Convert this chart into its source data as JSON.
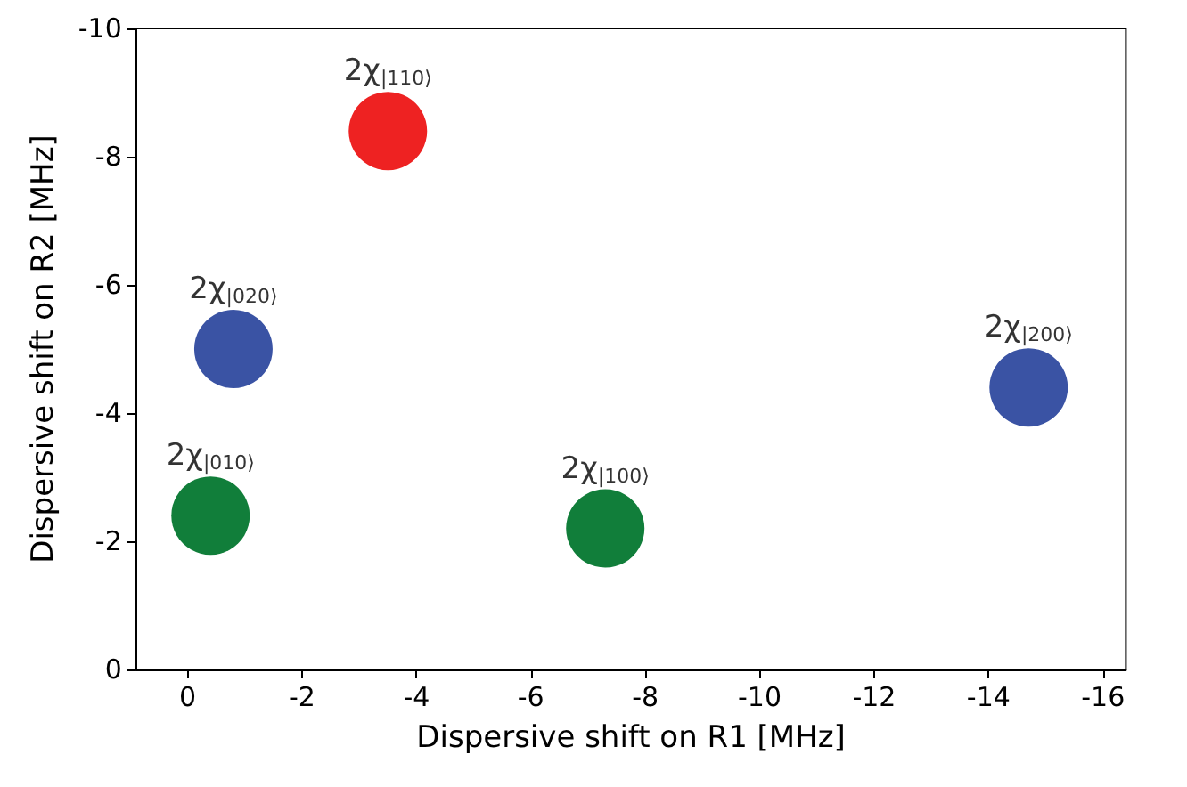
{
  "chart_data": {
    "type": "scatter",
    "xlabel": "Dispersive shift on R1 [MHz]",
    "ylabel": "Dispersive shift on R2 [MHz]",
    "x": [
      -3.5,
      -0.8,
      -14.7,
      -0.4,
      -7.3
    ],
    "values": [
      -8.4,
      -5.0,
      -4.4,
      -2.4,
      -2.2
    ],
    "colors": [
      "#ee2222",
      "#3a53a4",
      "#3a53a4",
      "#117e3a",
      "#117e3a"
    ],
    "xlim": [
      0.9,
      -16.4
    ],
    "xticks": [
      0,
      -2,
      -4,
      -6,
      -8,
      -10,
      -12,
      -14,
      -16
    ],
    "ylim": [
      0,
      -10
    ],
    "yticks": [
      0,
      -2,
      -4,
      -6,
      -8,
      -10
    ],
    "marker": "circle",
    "grid": false,
    "annotations": [
      {
        "text": "2χ$_{|110⟩}$",
        "x": -3.5,
        "y": -8.4
      },
      {
        "text": "2χ$_{|020⟩}$",
        "x": -0.8,
        "y": -5.0
      },
      {
        "text": "2χ$_{|200⟩}$",
        "x": -14.7,
        "y": -4.4
      },
      {
        "text": "2χ$_{|010⟩}$",
        "x": -0.4,
        "y": -2.4
      },
      {
        "text": "2χ$_{|100⟩}$",
        "x": -7.3,
        "y": -2.2
      }
    ]
  }
}
